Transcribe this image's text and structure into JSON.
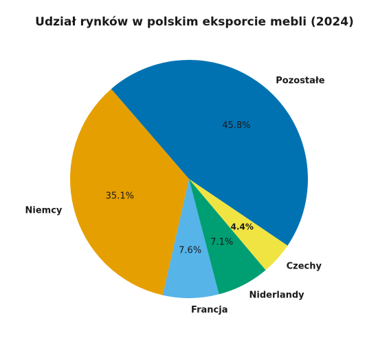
{
  "chart_data": {
    "type": "pie",
    "title": "Udział rynków w polskim eksporcie mebli (2024)",
    "slices": [
      {
        "label": "Pozostałe",
        "value": 45.8,
        "pct_label": "45.8%",
        "color": "#0072B2"
      },
      {
        "label": "Niemcy",
        "value": 35.1,
        "pct_label": "35.1%",
        "color": "#E69F00"
      },
      {
        "label": "Francja",
        "value": 7.6,
        "pct_label": "7.6%",
        "color": "#56B4E9"
      },
      {
        "label": "Niderlandy",
        "value": 7.1,
        "pct_label": "7.1%",
        "color": "#009E73"
      },
      {
        "label": "Czechy",
        "value": 4.4,
        "pct_label": "4.4%",
        "color": "#F0E442",
        "pct_bold": true
      }
    ]
  }
}
